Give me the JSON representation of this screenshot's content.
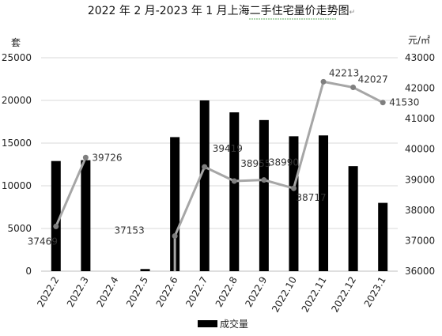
{
  "chart_data": {
    "type": "bar",
    "title": "2022 年 2 月-2023 年 1 月上海二手住宅量价走势图",
    "title_mark": "↵",
    "categories": [
      "2022.2",
      "2022.3",
      "2022.4",
      "2022.5",
      "2022.6",
      "2022.7",
      "2022.8",
      "2022.9",
      "2022.10",
      "2022.11",
      "2022.12",
      "2023.1"
    ],
    "left_axis": {
      "unit": "套",
      "min": 0,
      "max": 25000,
      "ticks": [
        0,
        5000,
        10000,
        15000,
        20000,
        25000
      ]
    },
    "right_axis": {
      "unit": "元/㎡",
      "min": 36000,
      "max": 43000,
      "ticks": [
        36000,
        37000,
        38000,
        39000,
        40000,
        41000,
        42000,
        43000
      ]
    },
    "series": [
      {
        "name": "成交量",
        "type": "bar",
        "axis": "left",
        "color": "#000000",
        "values": [
          12900,
          13000,
          0,
          250,
          15700,
          20000,
          18600,
          17700,
          15800,
          15900,
          12300,
          8000
        ]
      },
      {
        "type": "line",
        "axis": "right",
        "color": "#a6a6a6",
        "values": [
          37469,
          39726,
          null,
          37153,
          37153,
          39419,
          38955,
          38990,
          38717,
          42213,
          42027,
          41530
        ],
        "labels": [
          "37469",
          "39726",
          null,
          "37153",
          null,
          "39419",
          "38955",
          "38990",
          "38717",
          "42213",
          "42027",
          "41530"
        ]
      }
    ],
    "grid": true,
    "legend_position": "bottom"
  }
}
